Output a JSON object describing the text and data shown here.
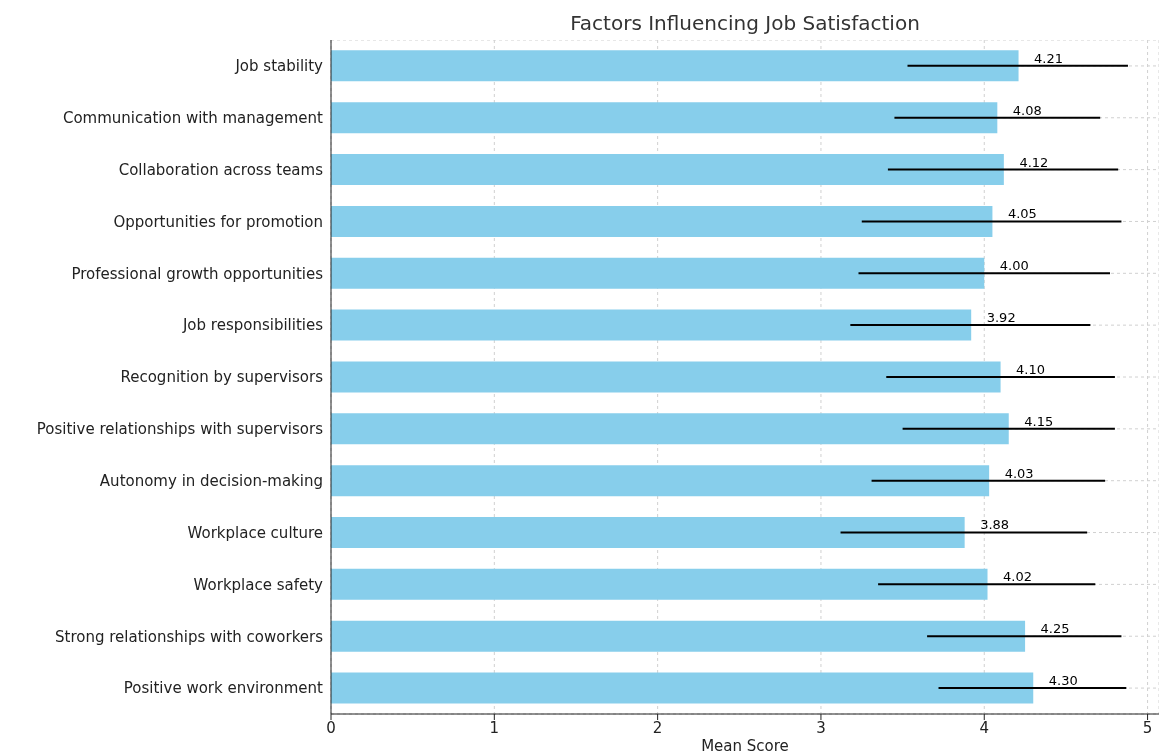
{
  "chart_data": {
    "type": "bar",
    "orientation": "horizontal",
    "title": "Factors Influencing Job Satisfaction",
    "xlabel": "Mean Score",
    "categories": [
      "Job stability",
      "Communication with management",
      "Collaboration across teams",
      "Opportunities for promotion",
      "Professional growth opportunities",
      "Job responsibilities",
      "Recognition by supervisors",
      "Positive relationships with supervisors",
      "Autonomy in decision-making",
      "Workplace culture",
      "Workplace safety",
      "Strong relationships with coworkers",
      "Positive work environment"
    ],
    "values": [
      4.21,
      4.08,
      4.12,
      4.05,
      4.0,
      3.92,
      4.1,
      4.15,
      4.03,
      3.88,
      4.02,
      4.25,
      4.3
    ],
    "errors": [
      [
        3.53,
        4.88
      ],
      [
        3.45,
        4.71
      ],
      [
        3.41,
        4.82
      ],
      [
        3.25,
        4.84
      ],
      [
        3.23,
        4.77
      ],
      [
        3.18,
        4.65
      ],
      [
        3.4,
        4.8
      ],
      [
        3.5,
        4.8
      ],
      [
        3.31,
        4.74
      ],
      [
        3.12,
        4.63
      ],
      [
        3.35,
        4.68
      ],
      [
        3.65,
        4.84
      ],
      [
        3.72,
        4.87
      ]
    ],
    "value_labels": [
      "4.21",
      "4.08",
      "4.12",
      "4.05",
      "4.00",
      "3.92",
      "4.10",
      "4.15",
      "4.03",
      "3.88",
      "4.02",
      "4.25",
      "4.30"
    ],
    "color": "#87ceeb",
    "xlim": [
      0,
      5.07
    ],
    "xticks": [
      0,
      1,
      2,
      3,
      4,
      5
    ],
    "grid": true
  }
}
